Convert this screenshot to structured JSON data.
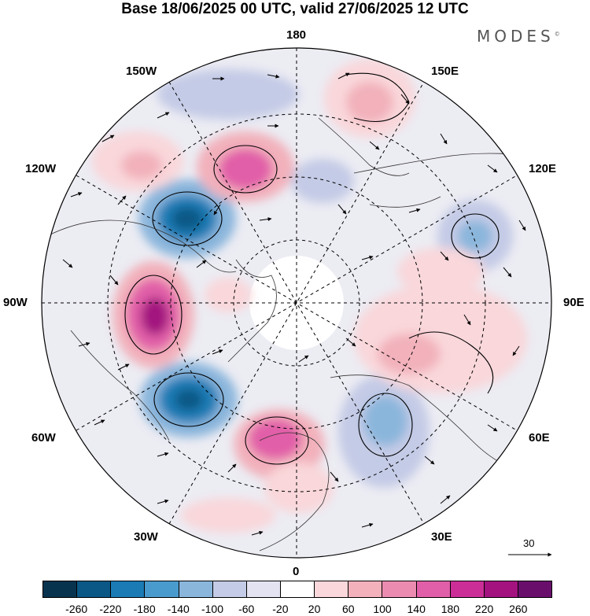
{
  "title": "Base 18/06/2025 00 UTC, valid 27/06/2025 12 UTC",
  "brand": "MODES",
  "brand_mark": "©",
  "longitude_labels": {
    "top": "180",
    "bottom": "0",
    "left": "90W",
    "right": "90E",
    "upper_left": "150W",
    "upper_right": "150E",
    "left_upper": "120W",
    "right_upper": "120E",
    "left_lower": "60W",
    "right_lower": "60E",
    "lower_left": "30W",
    "lower_right": "30E"
  },
  "vector_reference": "30",
  "colorbar": {
    "colors": [
      "#08334f",
      "#0b5886",
      "#1a7bb5",
      "#4a9bcd",
      "#8bb6dc",
      "#c4cbe6",
      "#e3e3f1",
      "#ffffff",
      "#f9d7da",
      "#f2b1bb",
      "#ec8bb0",
      "#e15fa8",
      "#cc2e97",
      "#a3127f",
      "#6a0e6c"
    ],
    "ticks": [
      "-260",
      "-220",
      "-180",
      "-140",
      "-100",
      "-60",
      "-20",
      "20",
      "60",
      "100",
      "140",
      "180",
      "220",
      "260"
    ]
  },
  "anomalies": [
    {
      "name": "low-120w",
      "value": -240
    },
    {
      "name": "low-70w",
      "value": -230
    },
    {
      "name": "low-40e",
      "value": -120
    },
    {
      "name": "low-110e",
      "value": -130
    },
    {
      "name": "high-95w",
      "value": 250
    },
    {
      "name": "high-160w",
      "value": 170
    },
    {
      "name": "high-10w",
      "value": 190
    },
    {
      "name": "high-160e",
      "value": 80
    },
    {
      "name": "high-70e",
      "value": 110
    },
    {
      "name": "high-135w",
      "value": 70
    }
  ]
}
